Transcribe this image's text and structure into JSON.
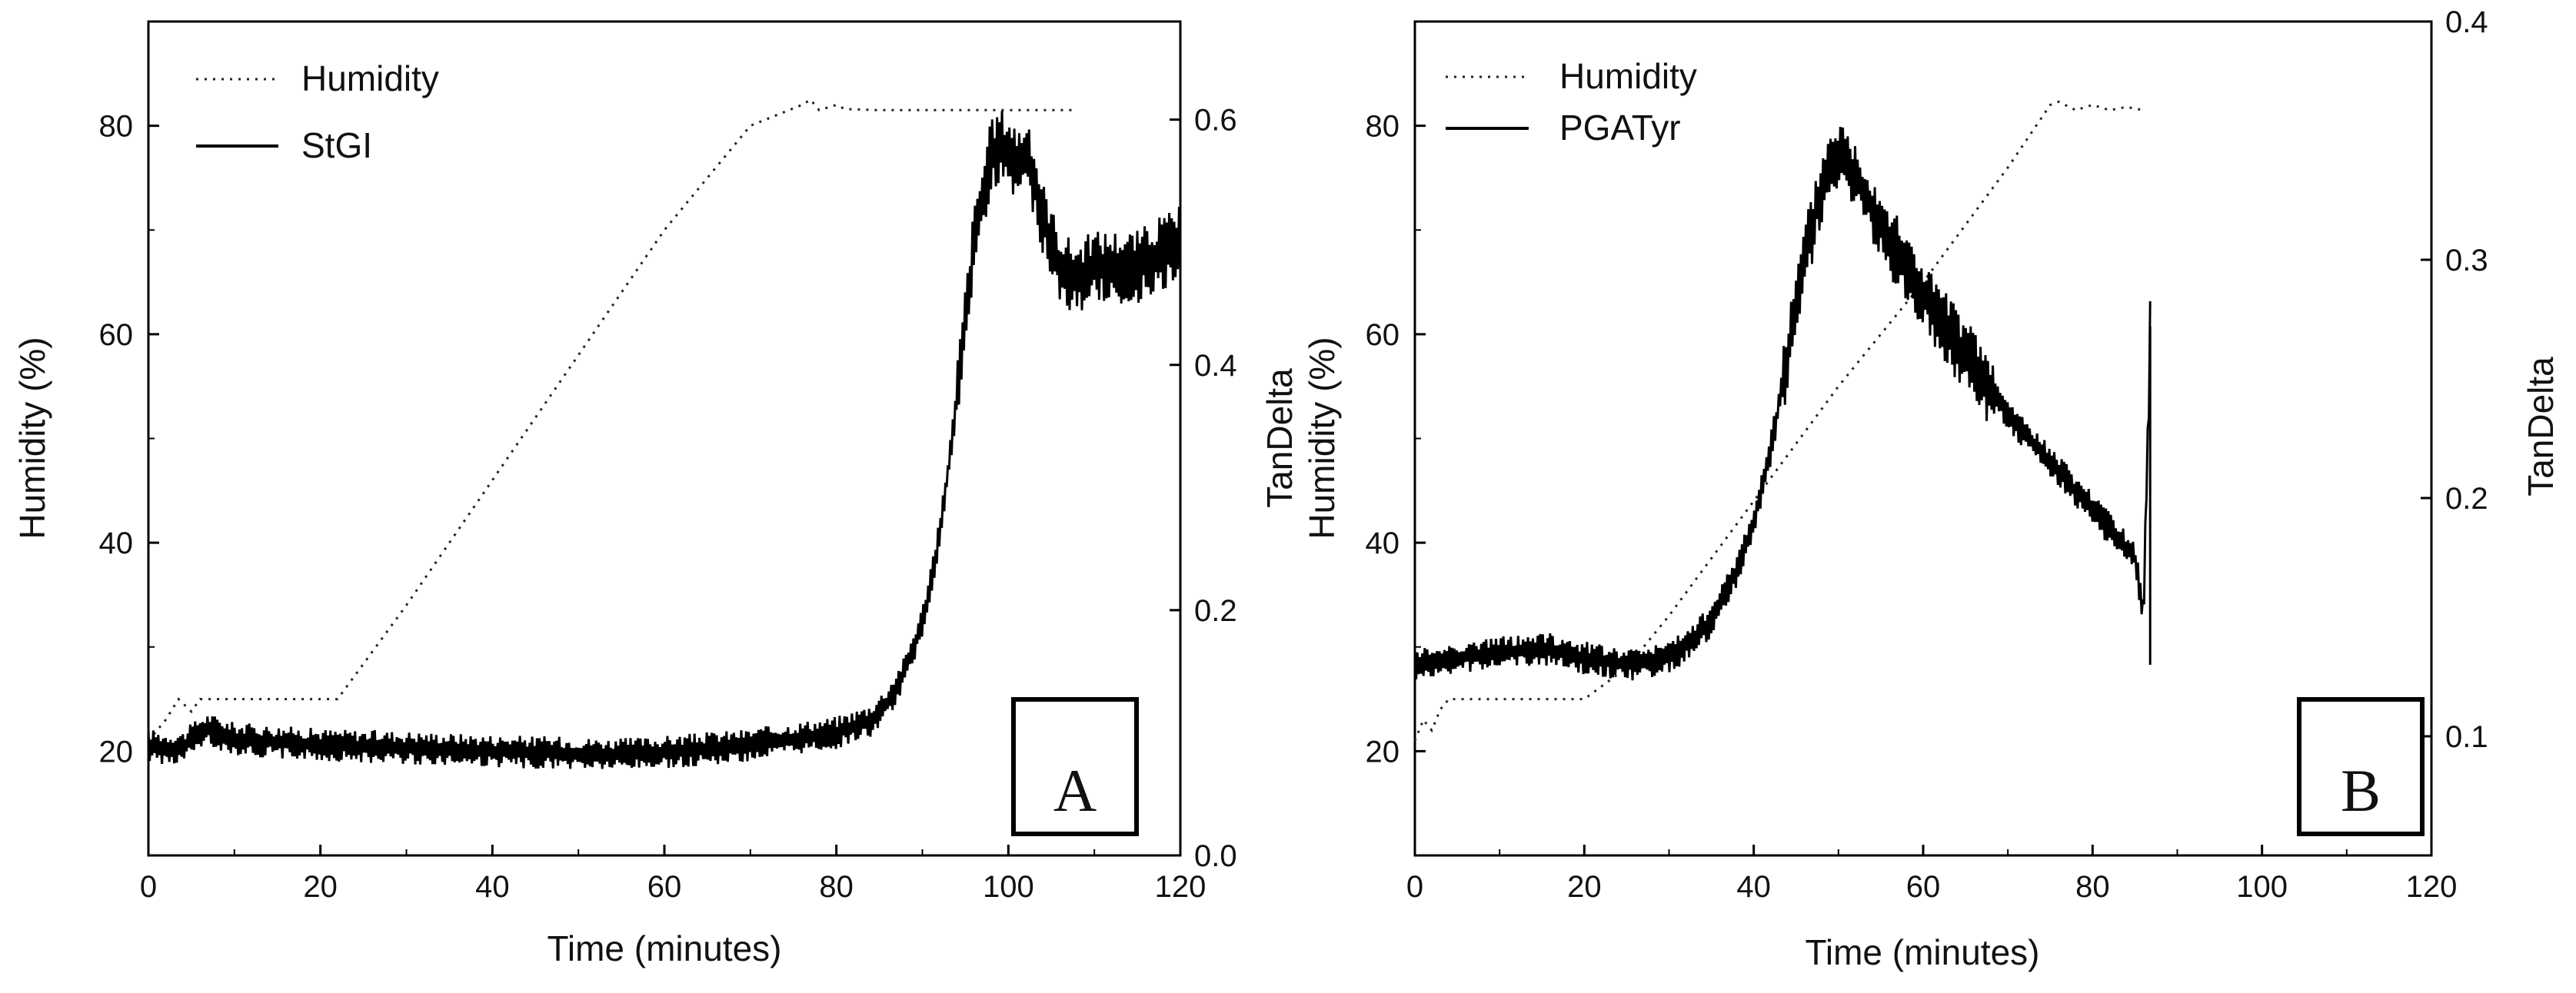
{
  "chart_data": [
    {
      "type": "line",
      "panel_label": "A",
      "xlabel": "Time (minutes)",
      "ylabel": "Humidity (%)",
      "y2label": "TanDelta",
      "xlim": [
        0,
        120
      ],
      "ylim": [
        10,
        90
      ],
      "y2lim": [
        0.0,
        0.68
      ],
      "x_ticks": [
        0,
        20,
        40,
        60,
        80,
        100,
        120
      ],
      "y_ticks": [
        20,
        40,
        60,
        80
      ],
      "y2_ticks": [
        "0.0",
        "0.2",
        "0.4",
        "0.6"
      ],
      "legend": [
        "Humidity",
        "StGI"
      ],
      "legend_position": "top-left",
      "series": [
        {
          "name": "Humidity",
          "axis": "left",
          "style": "dotted",
          "x": [
            0,
            2,
            3.5,
            5,
            6,
            8,
            15,
            22,
            30,
            40,
            50,
            60,
            70,
            76,
            77,
            78,
            80,
            81,
            85,
            90,
            100,
            108
          ],
          "y": [
            21,
            23,
            25,
            23.8,
            25,
            25,
            25,
            25,
            34,
            46,
            58,
            70,
            80,
            82,
            82.5,
            81.5,
            82,
            81.6,
            81.5,
            81.5,
            81.5,
            81.5
          ]
        },
        {
          "name": "StGI",
          "axis": "right",
          "style": "solid",
          "noise": true,
          "x": [
            0,
            2,
            4,
            6,
            7,
            8,
            10,
            20,
            30,
            40,
            50,
            55,
            60,
            70,
            80,
            84,
            86,
            88,
            90,
            92,
            94,
            96,
            98,
            99,
            100,
            101,
            102,
            103,
            104,
            105,
            106,
            108,
            110,
            115,
            120
          ],
          "y": [
            0.09,
            0.087,
            0.088,
            0.1,
            0.103,
            0.1,
            0.095,
            0.09,
            0.088,
            0.085,
            0.083,
            0.082,
            0.084,
            0.09,
            0.1,
            0.11,
            0.125,
            0.15,
            0.19,
            0.26,
            0.37,
            0.5,
            0.57,
            0.58,
            0.575,
            0.565,
            0.57,
            0.55,
            0.52,
            0.5,
            0.48,
            0.47,
            0.48,
            0.48,
            0.5
          ]
        }
      ]
    },
    {
      "type": "line",
      "panel_label": "B",
      "xlabel": "Time (minutes)",
      "ylabel": "Humidity (%)",
      "y2label": "TanDelta",
      "xlim": [
        0,
        120
      ],
      "ylim": [
        10,
        90
      ],
      "y2lim": [
        0.05,
        0.4
      ],
      "x_ticks": [
        0,
        20,
        40,
        60,
        80,
        100,
        120
      ],
      "y_ticks": [
        20,
        40,
        60,
        80
      ],
      "y2_ticks": [
        "0.1",
        "0.2",
        "0.3",
        "0.4"
      ],
      "legend": [
        "Humidity",
        "PGATyr"
      ],
      "legend_position": "top-left",
      "series": [
        {
          "name": "Humidity",
          "axis": "left",
          "style": "dotted",
          "x": [
            0,
            1,
            2,
            3,
            4,
            5,
            10,
            20,
            25,
            30,
            40,
            50,
            60,
            70,
            75,
            76,
            78,
            80,
            82,
            84,
            86
          ],
          "y": [
            21,
            23,
            22,
            24,
            25,
            25,
            25,
            25,
            28,
            33,
            44,
            55,
            65,
            76,
            82,
            82.3,
            81.5,
            82,
            81.5,
            81.8,
            81.5
          ]
        },
        {
          "name": "PGATyr",
          "axis": "right",
          "style": "solid",
          "noise": true,
          "x": [
            0,
            5,
            10,
            15,
            20,
            25,
            30,
            32,
            35,
            38,
            40,
            42,
            44,
            46,
            48,
            49,
            50,
            52,
            55,
            60,
            65,
            70,
            75,
            80,
            85,
            86,
            86.8
          ],
          "y": [
            0.13,
            0.133,
            0.135,
            0.137,
            0.133,
            0.13,
            0.133,
            0.138,
            0.148,
            0.17,
            0.19,
            0.22,
            0.26,
            0.3,
            0.33,
            0.34,
            0.345,
            0.335,
            0.315,
            0.285,
            0.26,
            0.235,
            0.215,
            0.195,
            0.175,
            0.15,
            0.27
          ]
        }
      ]
    }
  ]
}
